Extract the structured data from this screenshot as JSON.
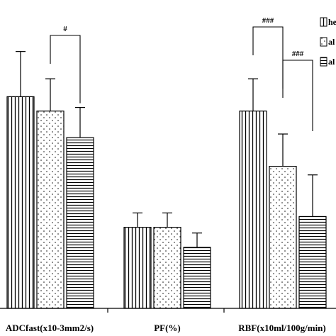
{
  "chart_data": {
    "type": "bar",
    "categories": [
      "ADCfast(x10-3mm2/s)",
      "PF(%)",
      "RBF(x10ml/100g/min)"
    ],
    "series": [
      {
        "name": "he",
        "pattern": "vertical-lines",
        "values": [
          2.95,
          1.13,
          2.75
        ],
        "errors": [
          0.63,
          0.2,
          0.45
        ]
      },
      {
        "name": "al",
        "pattern": "dots",
        "values": [
          2.75,
          1.13,
          1.98
        ],
        "errors": [
          0.45,
          0.2,
          0.45
        ]
      },
      {
        "name": "al",
        "pattern": "horizontal-lines",
        "values": [
          2.38,
          0.85,
          1.28
        ],
        "errors": [
          0.42,
          0.2,
          0.58
        ]
      }
    ],
    "ylim": [
      0,
      4.1
    ],
    "significance": [
      {
        "category": 0,
        "from_series": 1,
        "to_series": 2,
        "label": "#"
      },
      {
        "category": 2,
        "from_series": 0,
        "to_series": 1,
        "label": "###"
      },
      {
        "category": 2,
        "from_series": 1,
        "to_series": 2,
        "label": "###"
      }
    ],
    "legend_placement": "top-right",
    "grid": false,
    "colors": {
      "bar_fill": "#ffffff",
      "stroke": "#000000"
    }
  }
}
